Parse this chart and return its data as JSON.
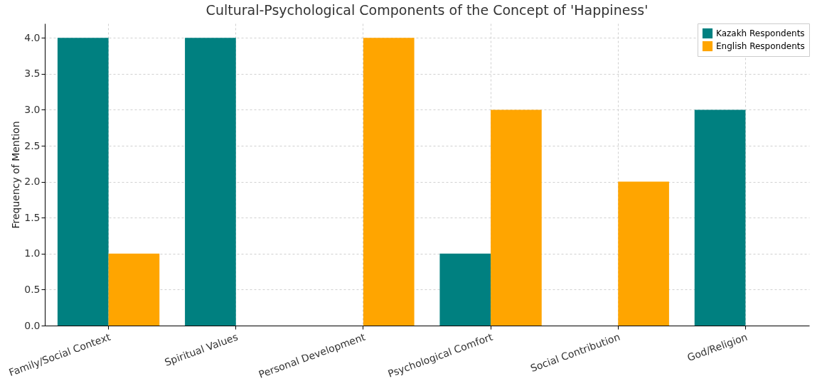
{
  "chart_data": {
    "type": "bar",
    "title": "Cultural-Psychological Components of the Concept of 'Happiness'",
    "ylabel": "Frequency of Mention",
    "categories": [
      "Family/Social Context",
      "Spiritual Values",
      "Personal Development",
      "Psychological Comfort",
      "Social Contribution",
      "God/Religion"
    ],
    "series": [
      {
        "name": "Kazakh Respondents",
        "color": "#008080",
        "values": [
          4,
          4,
          0,
          1,
          0,
          3
        ]
      },
      {
        "name": "English Respondents",
        "color": "#ffa500",
        "values": [
          1,
          0,
          4,
          3,
          2,
          0
        ]
      }
    ],
    "ylim": [
      0,
      4.2
    ],
    "yticks": [
      {
        "value": 0,
        "label": "0.0"
      },
      {
        "value": 0.5,
        "label": "0.5"
      },
      {
        "value": 1,
        "label": "1.0"
      },
      {
        "value": 1.5,
        "label": "1.5"
      },
      {
        "value": 2,
        "label": "2.0"
      },
      {
        "value": 2.5,
        "label": "2.5"
      },
      {
        "value": 3,
        "label": "3.0"
      },
      {
        "value": 3.5,
        "label": "3.5"
      },
      {
        "value": 4,
        "label": "4.0"
      }
    ],
    "grid": true,
    "legend": "top right"
  }
}
